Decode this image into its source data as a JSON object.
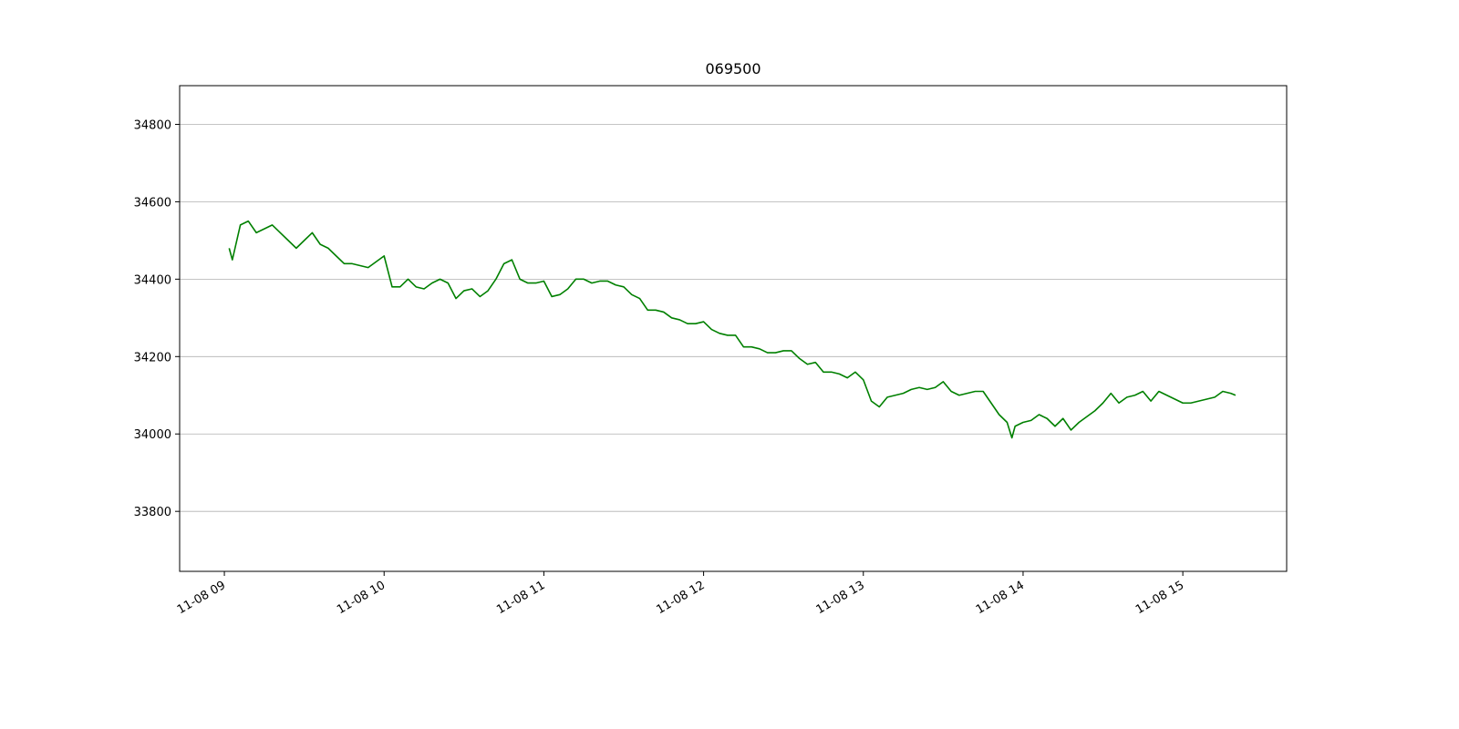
{
  "chart_data": {
    "type": "line",
    "title": "069500",
    "x": [
      9.03,
      9.05,
      9.1,
      9.15,
      9.2,
      9.25,
      9.3,
      9.35,
      9.4,
      9.45,
      9.5,
      9.55,
      9.6,
      9.65,
      9.7,
      9.75,
      9.8,
      9.85,
      9.9,
      9.95,
      10.0,
      10.05,
      10.1,
      10.15,
      10.2,
      10.25,
      10.3,
      10.35,
      10.4,
      10.45,
      10.5,
      10.55,
      10.6,
      10.65,
      10.7,
      10.75,
      10.8,
      10.85,
      10.9,
      10.95,
      11.0,
      11.05,
      11.1,
      11.15,
      11.2,
      11.25,
      11.3,
      11.35,
      11.4,
      11.45,
      11.5,
      11.55,
      11.6,
      11.65,
      11.7,
      11.75,
      11.8,
      11.85,
      11.9,
      11.95,
      12.0,
      12.05,
      12.1,
      12.15,
      12.2,
      12.25,
      12.3,
      12.35,
      12.4,
      12.45,
      12.5,
      12.55,
      12.6,
      12.65,
      12.7,
      12.75,
      12.8,
      12.85,
      12.9,
      12.95,
      13.0,
      13.05,
      13.1,
      13.15,
      13.2,
      13.25,
      13.3,
      13.35,
      13.4,
      13.45,
      13.5,
      13.55,
      13.6,
      13.65,
      13.7,
      13.75,
      13.8,
      13.85,
      13.9,
      13.93,
      13.95,
      14.0,
      14.05,
      14.1,
      14.15,
      14.2,
      14.25,
      14.3,
      14.35,
      14.4,
      14.45,
      14.5,
      14.55,
      14.6,
      14.65,
      14.7,
      14.75,
      14.8,
      14.85,
      14.9,
      14.95,
      15.0,
      15.05,
      15.1,
      15.15,
      15.2,
      15.25,
      15.3,
      15.33
    ],
    "series": [
      {
        "color": "#008000",
        "values": [
          34480,
          34450,
          34540,
          34550,
          34520,
          34530,
          34540,
          34520,
          34500,
          34480,
          34500,
          34520,
          34490,
          34480,
          34460,
          34440,
          34440,
          34435,
          34430,
          34445,
          34460,
          34380,
          34380,
          34400,
          34380,
          34375,
          34390,
          34400,
          34390,
          34350,
          34370,
          34375,
          34355,
          34370,
          34400,
          34440,
          34450,
          34400,
          34390,
          34390,
          34395,
          34355,
          34360,
          34375,
          34400,
          34400,
          34390,
          34395,
          34395,
          34385,
          34380,
          34360,
          34350,
          34320,
          34320,
          34315,
          34300,
          34295,
          34285,
          34285,
          34290,
          34270,
          34260,
          34255,
          34255,
          34225,
          34225,
          34220,
          34210,
          34210,
          34215,
          34215,
          34195,
          34180,
          34185,
          34160,
          34160,
          34155,
          34145,
          34160,
          34140,
          34085,
          34070,
          34095,
          34100,
          34105,
          34115,
          34120,
          34115,
          34120,
          34135,
          34110,
          34100,
          34105,
          34110,
          34110,
          34080,
          34050,
          34030,
          33990,
          34020,
          34030,
          34035,
          34050,
          34040,
          34020,
          34040,
          34010,
          34030,
          34045,
          34060,
          34080,
          34105,
          34080,
          34095,
          34100,
          34110,
          34085,
          34110,
          34100,
          34090,
          34080,
          34080,
          34085,
          34090,
          34095,
          34110,
          34105,
          34100
        ]
      }
    ],
    "xlim": [
      8.72,
      15.65
    ],
    "xticks": [
      {
        "value": 9,
        "label": "11-08 09"
      },
      {
        "value": 10,
        "label": "11-08 10"
      },
      {
        "value": 11,
        "label": "11-08 11"
      },
      {
        "value": 12,
        "label": "11-08 12"
      },
      {
        "value": 13,
        "label": "11-08 13"
      },
      {
        "value": 14,
        "label": "11-08 14"
      },
      {
        "value": 15,
        "label": "11-08 15"
      }
    ],
    "ylim": [
      33645,
      34900
    ],
    "yticks": [
      33800,
      34000,
      34200,
      34400,
      34600,
      34800
    ],
    "grid": "y"
  }
}
